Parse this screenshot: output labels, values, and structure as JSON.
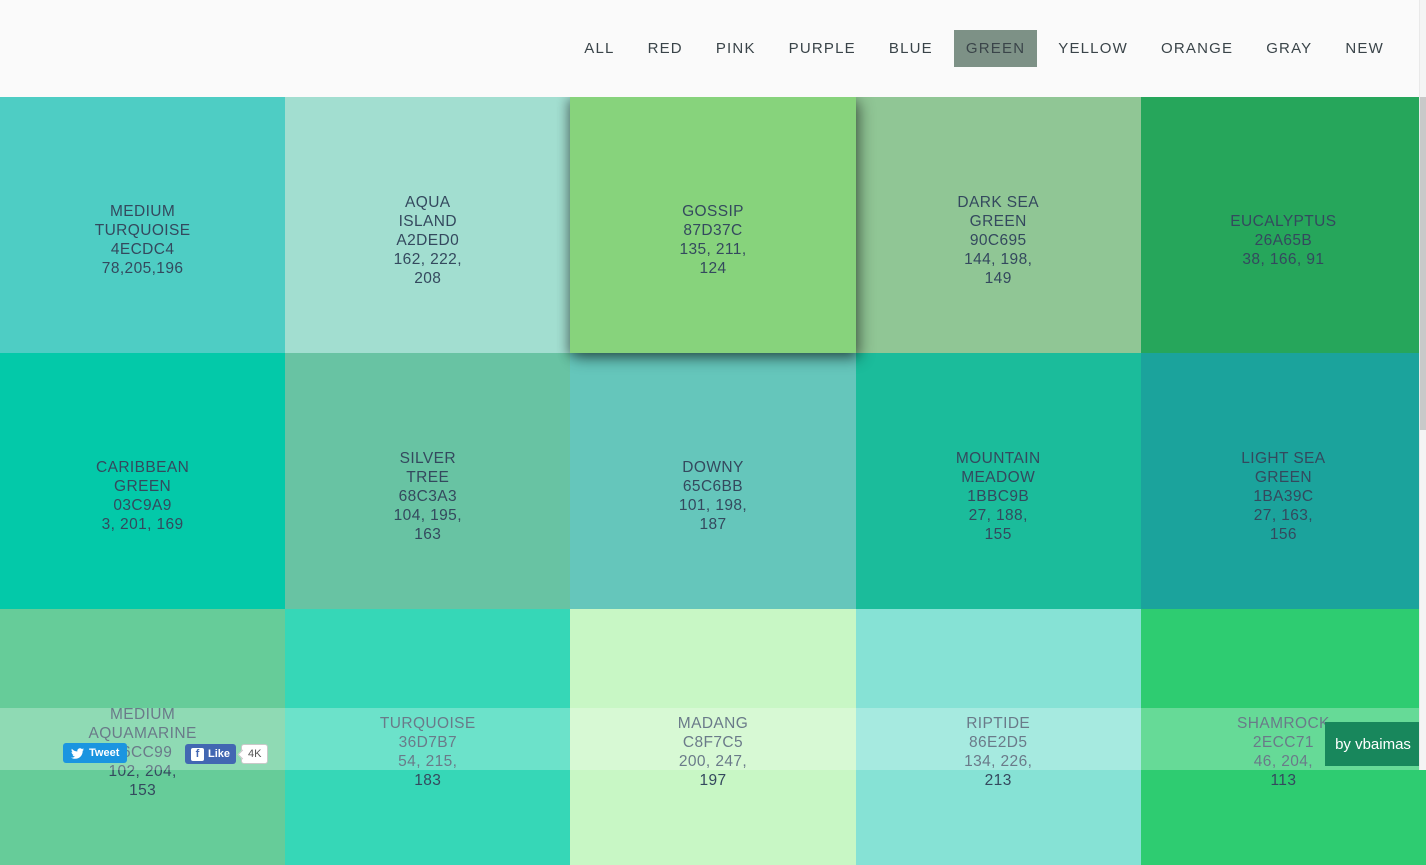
{
  "nav": {
    "items": [
      {
        "label": "ALL",
        "active": false
      },
      {
        "label": "RED",
        "active": false
      },
      {
        "label": "PINK",
        "active": false
      },
      {
        "label": "PURPLE",
        "active": false
      },
      {
        "label": "BLUE",
        "active": false
      },
      {
        "label": "GREEN",
        "active": true
      },
      {
        "label": "YELLOW",
        "active": false
      },
      {
        "label": "ORANGE",
        "active": false
      },
      {
        "label": "GRAY",
        "active": false
      },
      {
        "label": "NEW",
        "active": false
      }
    ]
  },
  "grid": {
    "cells": [
      {
        "name": "MEDIUM TURQUOISE",
        "hex": "4ECDC4",
        "rgb": "78,205,196",
        "display": "MEDIUM\nTURQUOISE\n4ECDC4\n78,205,196",
        "elevated": false
      },
      {
        "name": "AQUA ISLAND",
        "hex": "A2DED0",
        "rgb": "162, 222, 208",
        "display": "AQUA\nISLAND\nA2DED0\n162, 222,\n208",
        "elevated": false
      },
      {
        "name": "GOSSIP",
        "hex": "87D37C",
        "rgb": "135, 211, 124",
        "display": "GOSSIP\n87D37C\n135, 211,\n124",
        "elevated": true
      },
      {
        "name": "DARK SEA GREEN",
        "hex": "90C695",
        "rgb": "144, 198, 149",
        "display": "DARK SEA\nGREEN\n90C695\n144, 198,\n149",
        "elevated": false
      },
      {
        "name": "EUCALYPTUS",
        "hex": "26A65B",
        "rgb": "38, 166, 91",
        "display": "EUCALYPTUS\n26A65B\n38, 166, 91",
        "elevated": false
      },
      {
        "name": "CARIBBEAN GREEN",
        "hex": "03C9A9",
        "rgb": "3, 201, 169",
        "display": "CARIBBEAN\nGREEN\n03C9A9\n3, 201, 169",
        "elevated": false
      },
      {
        "name": "SILVER TREE",
        "hex": "68C3A3",
        "rgb": "104, 195, 163",
        "display": "SILVER\nTREE\n68C3A3\n104, 195,\n163",
        "elevated": false
      },
      {
        "name": "DOWNY",
        "hex": "65C6BB",
        "rgb": "101, 198, 187",
        "display": "DOWNY\n65C6BB\n101, 198,\n187",
        "elevated": false
      },
      {
        "name": "MOUNTAIN MEADOW",
        "hex": "1BBC9B",
        "rgb": "27, 188, 155",
        "display": "MOUNTAIN\nMEADOW\n1BBC9B\n27, 188,\n155",
        "elevated": false
      },
      {
        "name": "LIGHT SEA GREEN",
        "hex": "1BA39C",
        "rgb": "27, 163, 156",
        "display": "LIGHT SEA\nGREEN\n1BA39C\n27, 163,\n156",
        "elevated": false
      },
      {
        "name": "MEDIUM AQUAMARINE",
        "hex": "66CC99",
        "rgb": "102, 204, 153",
        "display": "MEDIUM\nAQUAMARINE\n66CC99\n102, 204,\n153",
        "elevated": false
      },
      {
        "name": "TURQUOISE",
        "hex": "36D7B7",
        "rgb": "54, 215, 183",
        "display": "TURQUOISE\n36D7B7\n54, 215,\n183",
        "elevated": false
      },
      {
        "name": "MADANG",
        "hex": "C8F7C5",
        "rgb": "200, 247, 197",
        "display": "MADANG\nC8F7C5\n200, 247,\n197",
        "elevated": false
      },
      {
        "name": "RIPTIDE",
        "hex": "86E2D5",
        "rgb": "134, 226, 213",
        "display": "RIPTIDE\n86E2D5\n134, 226,\n213",
        "elevated": false
      },
      {
        "name": "SHAMROCK",
        "hex": "2ECC71",
        "rgb": "46, 204, 113",
        "display": "SHAMROCK\n2ECC71\n46, 204,\n113",
        "elevated": false
      }
    ]
  },
  "footer": {
    "tweet_label": "Tweet",
    "like_label": "Like",
    "like_count": "4K",
    "credit": "by vbaimas"
  },
  "icons": {
    "tweet": "twitter-bird-icon",
    "facebook_f_glyph": "f"
  },
  "colors": {
    "header_bg": "#fafafa",
    "nav_text": "#3a4449",
    "nav_active_bg": "#7d9186",
    "card_text": "#34495e",
    "overlay": "rgba(255,255,255,0.27)",
    "tweet_bg": "#1b95e0",
    "like_bg": "#4267b2",
    "credit_bg": "#18875c"
  }
}
